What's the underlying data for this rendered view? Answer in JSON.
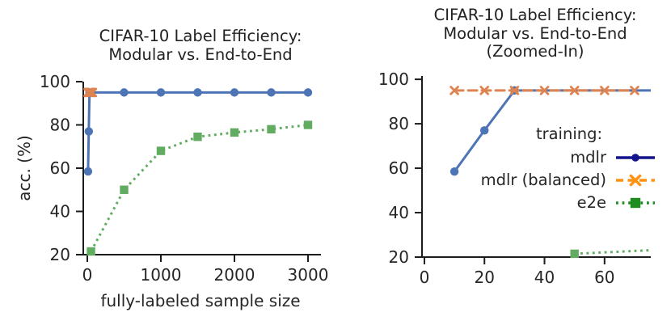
{
  "figure": {
    "background": "#ffffff",
    "text_color": "#262626",
    "axis_color": "#1c1c1c"
  },
  "chart_data": [
    {
      "type": "line",
      "title": "CIFAR-10 Label Efficiency:\nModular vs. End-to-End",
      "xlabel": "fully-labeled sample size",
      "ylabel": "acc. (%)",
      "xlim": [
        -55,
        3176
      ],
      "ylim": [
        20,
        100
      ],
      "xticks": [
        0,
        1000,
        2000,
        3000
      ],
      "yticks": [
        20,
        40,
        60,
        80,
        100
      ],
      "grid": false,
      "legend_position": "none",
      "series": [
        {
          "name": "e2e",
          "color": "#62ac62",
          "line_style": "dotted",
          "marker": "square",
          "x": [
            50,
            500,
            1000,
            1500,
            2000,
            2500,
            3000
          ],
          "y": [
            21.5,
            50,
            68,
            74.5,
            76.5,
            78,
            80
          ]
        },
        {
          "name": "mdlr",
          "color": "#4d74b4",
          "line_style": "solid",
          "marker": "circle",
          "x": [
            10,
            20,
            30,
            500,
            1000,
            1500,
            2000,
            2500,
            3000
          ],
          "y": [
            58.5,
            77,
            95,
            95,
            95,
            95,
            95,
            95,
            95
          ]
        },
        {
          "name": "mdlr (balanced)",
          "color": "#de8452",
          "line_style": "dashed",
          "marker": "x",
          "x": [
            10,
            20,
            30,
            40,
            50,
            60,
            70
          ],
          "y": [
            95,
            95,
            95,
            95,
            95,
            95,
            95
          ]
        }
      ]
    },
    {
      "type": "line",
      "title": "CIFAR-10 Label Efficiency:\nModular vs. End-to-End\n(Zoomed-In)",
      "xlim": [
        -0.8,
        75.4
      ],
      "ylim": [
        20,
        101.5
      ],
      "xticks": [
        0,
        20,
        40,
        60
      ],
      "yticks": [
        20,
        40,
        60,
        80,
        100
      ],
      "grid": false,
      "legend_position": "center-right",
      "series": [
        {
          "name": "e2e",
          "color": "#62ac62",
          "line_style": "dotted",
          "marker": "square",
          "x": [
            50,
            500
          ],
          "y": [
            21.5,
            50
          ]
        },
        {
          "name": "mdlr",
          "color": "#4d74b4",
          "line_style": "solid",
          "marker": "circle",
          "x": [
            10,
            20,
            30,
            500
          ],
          "y": [
            58.5,
            77,
            95,
            95
          ]
        },
        {
          "name": "mdlr (balanced)",
          "color": "#de8452",
          "line_style": "dashed",
          "marker": "x",
          "x": [
            10,
            20,
            30,
            40,
            50,
            60,
            70
          ],
          "y": [
            95,
            95,
            95,
            95,
            95,
            95,
            95
          ]
        }
      ]
    }
  ],
  "legend": {
    "title": "training:",
    "items": [
      {
        "label": "mdlr",
        "color": "#14148c",
        "line_style": "solid",
        "marker": "circle"
      },
      {
        "label": "mdlr (balanced)",
        "color": "#ff9113",
        "line_style": "dashed",
        "marker": "x"
      },
      {
        "label": "e2e",
        "color": "#1e8c1e",
        "line_style": "dotted",
        "marker": "square"
      }
    ]
  }
}
